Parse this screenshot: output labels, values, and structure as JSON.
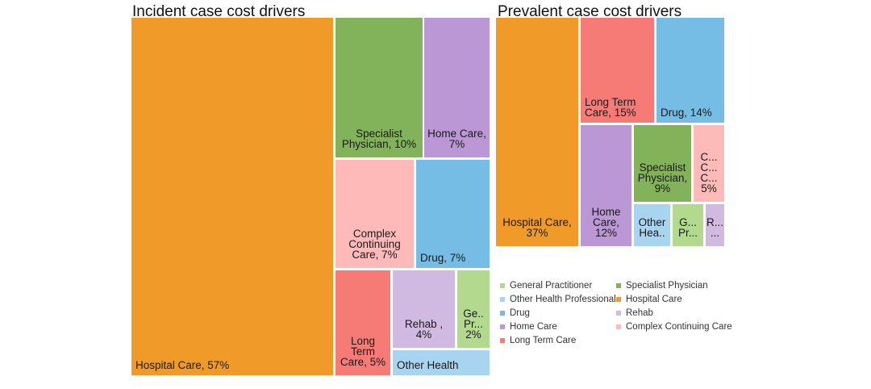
{
  "chart_data": [
    {
      "type": "treemap",
      "title": "Incident case cost drivers",
      "items": [
        {
          "category": "Hospital Care",
          "value": 57,
          "label": "Hospital Care, 57%"
        },
        {
          "category": "Specialist Physician",
          "value": 10,
          "label": "Specialist\nPhysician, 10%"
        },
        {
          "category": "Home Care",
          "value": 7,
          "label": "Home Care,\n7%"
        },
        {
          "category": "Complex Continuing Care",
          "value": 7,
          "label": "Complex\nContinuing\nCare, 7%"
        },
        {
          "category": "Drug",
          "value": 7,
          "label": "Drug, 7%"
        },
        {
          "category": "Long Term Care",
          "value": 5,
          "label": "Long\nTerm\nCare, 5%"
        },
        {
          "category": "Rehab",
          "value": 4,
          "label": "Rehab ,\n4%"
        },
        {
          "category": "General Practitioner",
          "value": 2,
          "label": "Ge..\nPr...\n2%"
        },
        {
          "category": "Other Health Professional",
          "value": 1,
          "label": "Other Health"
        }
      ]
    },
    {
      "type": "treemap",
      "title": "Prevalent case cost drivers",
      "items": [
        {
          "category": "Hospital Care",
          "value": 37,
          "label": "Hospital Care,\n37%"
        },
        {
          "category": "Long Term Care",
          "value": 15,
          "label": "Long Term\nCare, 15%"
        },
        {
          "category": "Drug",
          "value": 14,
          "label": "Drug, 14%"
        },
        {
          "category": "Home Care",
          "value": 12,
          "label": "Home\nCare,\n12%"
        },
        {
          "category": "Specialist Physician",
          "value": 9,
          "label": "Specialist\nPhysician,\n9%"
        },
        {
          "category": "Complex Continuing Care",
          "value": 5,
          "label": "C...\nC...\nC...\n5%"
        },
        {
          "category": "Other Health Professional",
          "value": 3,
          "label": "Other\nHea.."
        },
        {
          "category": "General Practitioner",
          "value": 3,
          "label": "G...\nPr..."
        },
        {
          "category": "Rehab",
          "value": 2,
          "label": "R...\n..."
        }
      ]
    }
  ],
  "legend": {
    "items": [
      {
        "label": "General Practitioner",
        "color": "#b3d98f"
      },
      {
        "label": "Specialist Physician",
        "color": "#82b35a"
      },
      {
        "label": "Other Health Professional",
        "color": "#a9d4ef"
      },
      {
        "label": "Hospital Care",
        "color": "#f09b29"
      },
      {
        "label": "Drug",
        "color": "#76bde6"
      },
      {
        "label": "Rehab",
        "color": "#d1bae2"
      },
      {
        "label": "Home Care",
        "color": "#bb97d5"
      },
      {
        "label": "Complex Continuing Care",
        "color": "#fdbab8"
      },
      {
        "label": "Long Term Care",
        "color": "#f67a76"
      }
    ]
  }
}
